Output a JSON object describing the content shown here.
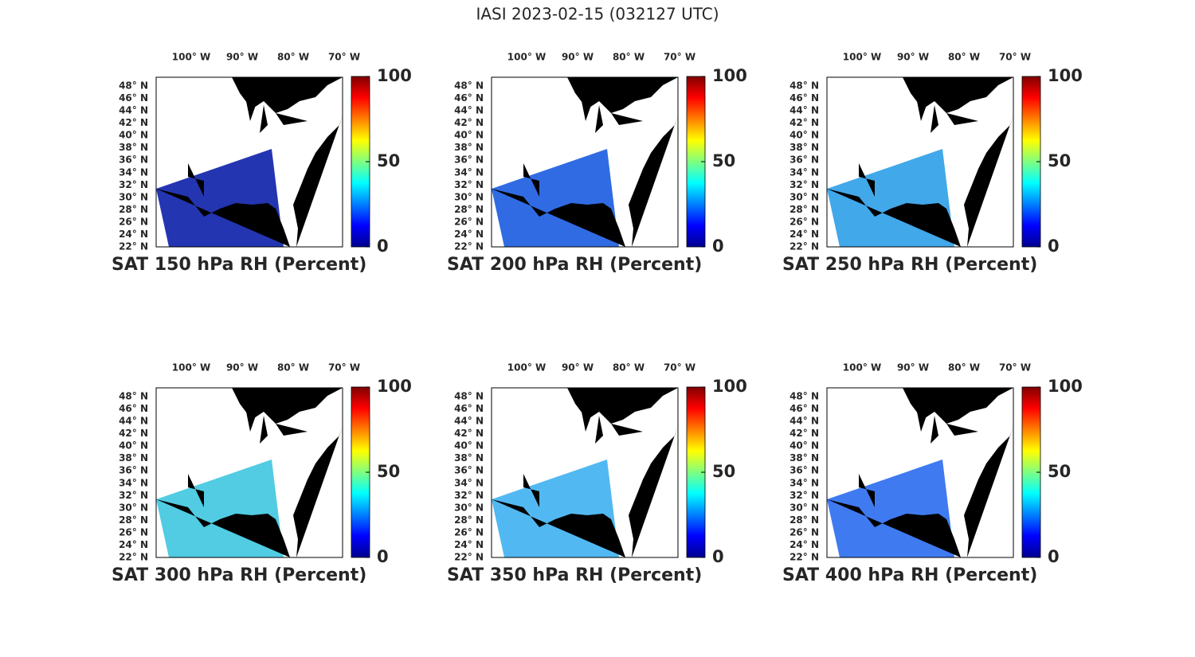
{
  "title": "IASI 2023-02-15 (032127 UTC)",
  "lon_labels": [
    "100° W",
    "90° W",
    "80° W",
    "70° W"
  ],
  "lat_labels": [
    "48° N",
    "46° N",
    "44° N",
    "42° N",
    "40° N",
    "38° N",
    "36° N",
    "34° N",
    "32° N",
    "30° N",
    "28° N",
    "26° N",
    "24° N",
    "22° N"
  ],
  "colorbar": {
    "lim": [
      0,
      100
    ],
    "ticks": [
      0,
      50,
      100
    ]
  },
  "panels": [
    {
      "title": "SAT 150 hPa RH (Percent)",
      "color": "#0c1fa8"
    },
    {
      "title": "SAT 200 hPa RH (Percent)",
      "color": "#1a5be0"
    },
    {
      "title": "SAT 250 hPa RH (Percent)",
      "color": "#2c9fe8"
    },
    {
      "title": "SAT 300 hPa RH (Percent)",
      "color": "#3ec6e0"
    },
    {
      "title": "SAT 350 hPa RH (Percent)",
      "color": "#3fb0f0"
    },
    {
      "title": "SAT 400 hPa RH (Percent)",
      "color": "#2a6cf0"
    }
  ]
}
